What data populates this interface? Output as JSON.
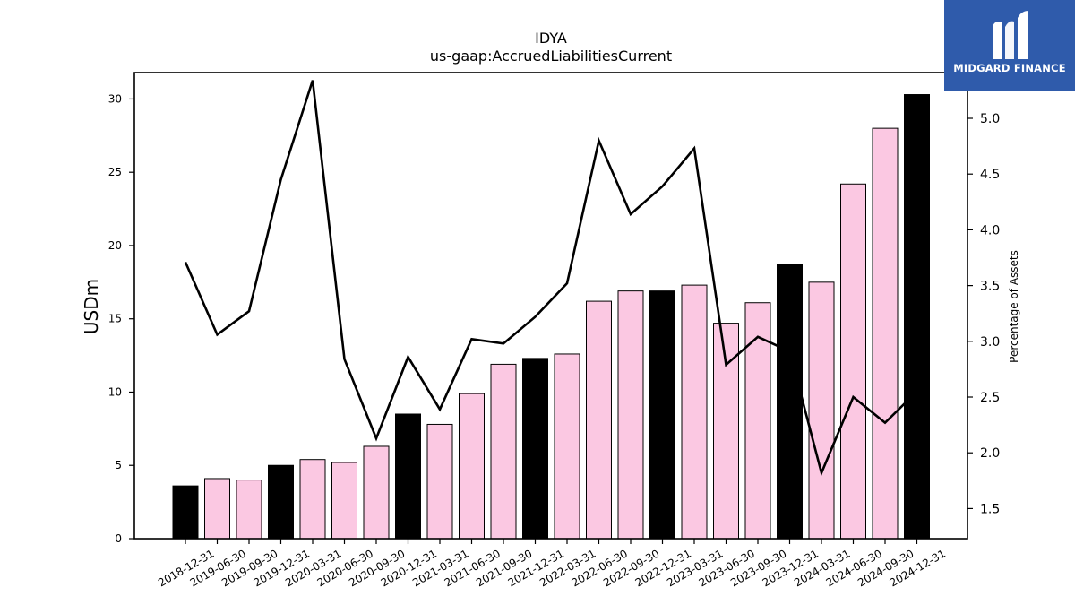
{
  "brand": {
    "name": "MIDGARD FINANCE",
    "mark_icon": "midgard-logo-icon",
    "background": "#2f5bab"
  },
  "chart_data": {
    "type": "bar",
    "title": "IDYA",
    "subtitle": "us-gaap:AccruedLiabilitiesCurrent",
    "ylabel": "USDm",
    "y2label": "Percentage of Assets",
    "ylim": [
      0,
      31.8
    ],
    "y2lim": [
      1.23,
      5.41
    ],
    "yticks": [
      0,
      5,
      10,
      15,
      20,
      25,
      30
    ],
    "y2ticks": [
      "1.5",
      "2.0",
      "2.5",
      "3.0",
      "3.5",
      "4.0",
      "4.5",
      "5.0"
    ],
    "grid": false,
    "categories": [
      "2018-12-31",
      "2019-06-30",
      "2019-09-30",
      "2019-12-31",
      "2020-03-31",
      "2020-06-30",
      "2020-09-30",
      "2020-12-31",
      "2021-03-31",
      "2021-06-30",
      "2021-09-30",
      "2021-12-31",
      "2022-03-31",
      "2022-06-30",
      "2022-09-30",
      "2022-12-31",
      "2023-03-31",
      "2023-06-30",
      "2023-09-30",
      "2023-12-31",
      "2024-03-31",
      "2024-06-30",
      "2024-09-30",
      "2024-12-31"
    ],
    "series": [
      {
        "axis": "left",
        "type": "bar",
        "values": [
          3.6,
          4.1,
          4.0,
          5.0,
          5.4,
          5.2,
          6.3,
          8.5,
          7.8,
          9.9,
          11.9,
          12.3,
          12.6,
          16.2,
          16.9,
          16.9,
          17.3,
          14.7,
          16.1,
          18.7,
          17.5,
          24.2,
          28.0,
          30.3
        ]
      },
      {
        "axis": "right",
        "type": "line",
        "values": [
          3.71,
          3.06,
          3.27,
          4.45,
          5.34,
          2.84,
          2.13,
          2.86,
          2.39,
          3.02,
          2.98,
          3.22,
          3.52,
          4.8,
          4.14,
          4.39,
          4.73,
          2.79,
          3.04,
          2.91,
          1.82,
          2.5,
          2.27,
          2.55
        ]
      }
    ],
    "colors": {
      "annual_bar": "#000000",
      "quarter_bar": "#fbc8e2",
      "bar_edge": "#000000",
      "line": "#000000"
    },
    "annual_flags": [
      true,
      false,
      false,
      true,
      false,
      false,
      false,
      true,
      false,
      false,
      false,
      true,
      false,
      false,
      false,
      true,
      false,
      false,
      false,
      true,
      false,
      false,
      false,
      true
    ]
  }
}
